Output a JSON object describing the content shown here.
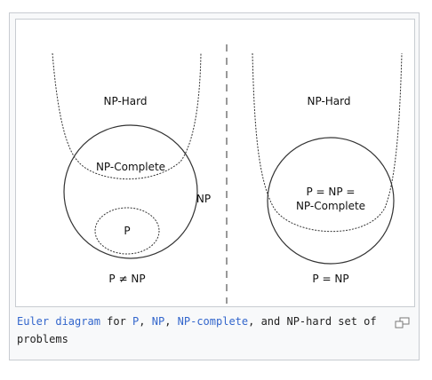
{
  "diagram": {
    "left": {
      "np_hard": "NP-Hard",
      "np_complete": "NP-Complete",
      "np": "NP",
      "p": "P",
      "relation": "P ≠ NP"
    },
    "right": {
      "np_hard": "NP-Hard",
      "merged_line1": "P = NP =",
      "merged_line2": "NP-Complete",
      "relation": "P = NP"
    }
  },
  "caption": {
    "link_euler": "Euler diagram",
    "text_for": " for ",
    "link_p": "P",
    "sep1": ", ",
    "link_np": "NP",
    "sep2": ", ",
    "link_npc": "NP-complete",
    "text_end": ", and NP-hard set of problems"
  },
  "icons": {
    "magnify": "magnify-clip-icon"
  },
  "colors": {
    "link": "#3366cc",
    "border": "#c8ccd1",
    "stroke": "#333333"
  }
}
